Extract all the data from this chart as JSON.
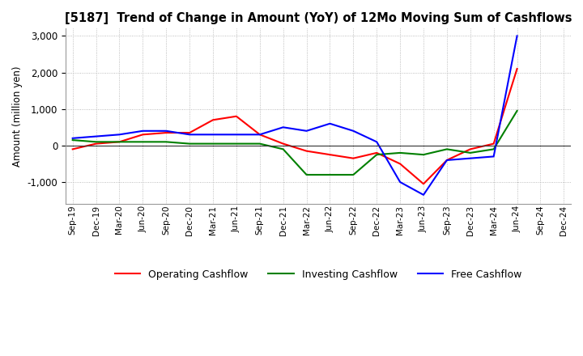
{
  "title": "[5187]  Trend of Change in Amount (YoY) of 12Mo Moving Sum of Cashflows",
  "ylabel": "Amount (million yen)",
  "x_labels": [
    "Sep-19",
    "Dec-19",
    "Mar-20",
    "Jun-20",
    "Sep-20",
    "Dec-20",
    "Mar-21",
    "Jun-21",
    "Sep-21",
    "Dec-21",
    "Mar-22",
    "Jun-22",
    "Sep-22",
    "Dec-22",
    "Mar-23",
    "Jun-23",
    "Sep-23",
    "Dec-23",
    "Mar-24",
    "Jun-24",
    "Sep-24",
    "Dec-24"
  ],
  "operating": [
    -100,
    50,
    100,
    300,
    350,
    350,
    700,
    800,
    300,
    50,
    -150,
    -250,
    -350,
    -200,
    -500,
    -1050,
    -400,
    -100,
    50,
    2100,
    null,
    null
  ],
  "investing": [
    150,
    100,
    100,
    100,
    100,
    50,
    50,
    50,
    50,
    -100,
    -800,
    -800,
    -800,
    -250,
    -200,
    -250,
    -100,
    -200,
    -100,
    950,
    null,
    null
  ],
  "free": [
    200,
    250,
    300,
    400,
    400,
    300,
    300,
    300,
    300,
    500,
    400,
    600,
    400,
    100,
    -1000,
    -1350,
    -400,
    -350,
    -300,
    3000,
    null,
    null
  ],
  "ylim": [
    -1600,
    3200
  ],
  "yticks": [
    -1000,
    0,
    1000,
    2000,
    3000
  ],
  "operating_color": "#ff0000",
  "investing_color": "#008000",
  "free_color": "#0000ff",
  "background_color": "#ffffff",
  "grid_color": "#aaaaaa",
  "grid_style": ":"
}
